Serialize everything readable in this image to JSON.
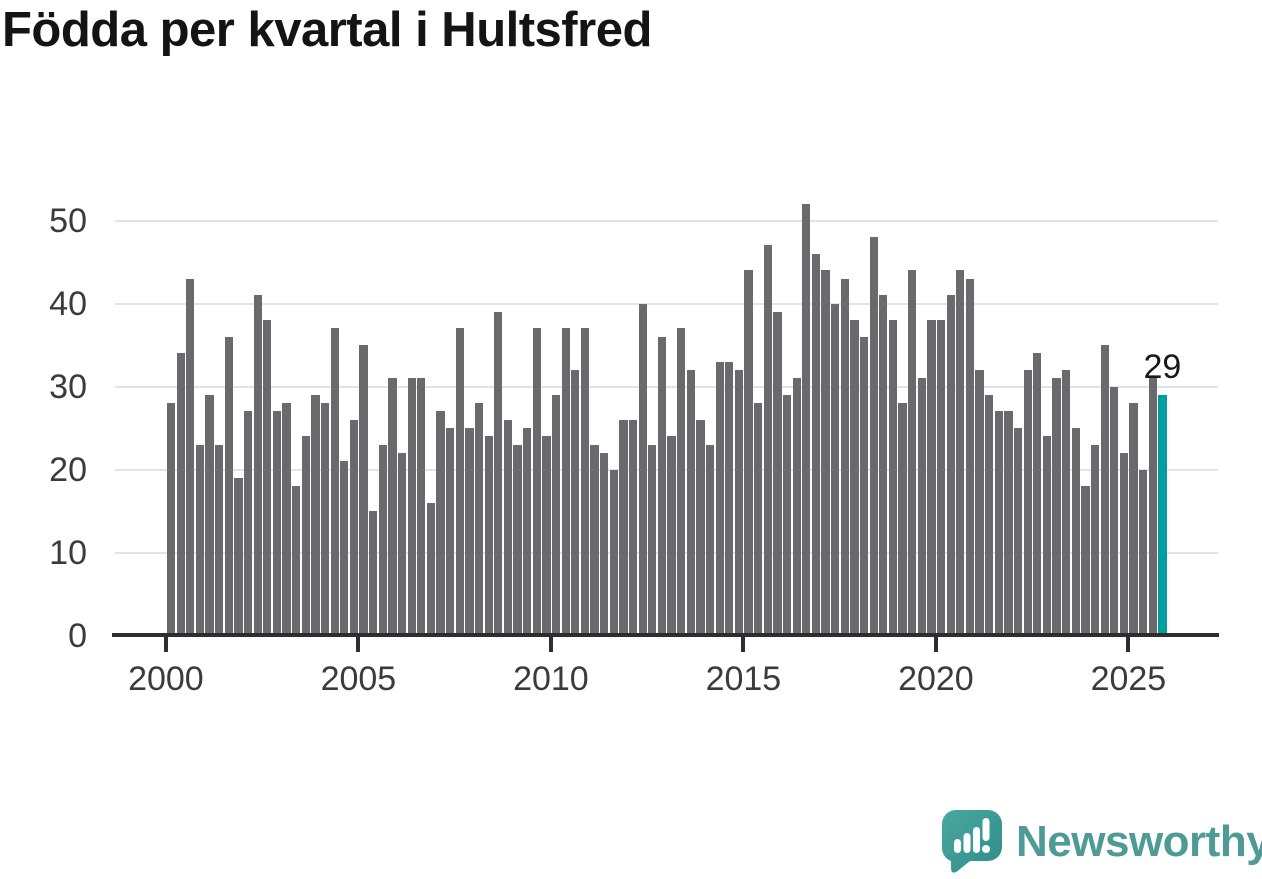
{
  "chart_data": {
    "type": "bar",
    "title": "Födda per kvartal i Hultsfred",
    "xlabel": "",
    "ylabel": "",
    "x_start": "2000 Q1",
    "x_end": "2025 Q4",
    "x_step": "quarter",
    "values": [
      28,
      34,
      43,
      23,
      29,
      23,
      36,
      19,
      27,
      41,
      38,
      27,
      28,
      18,
      24,
      29,
      28,
      37,
      21,
      26,
      35,
      15,
      23,
      31,
      22,
      31,
      31,
      16,
      27,
      25,
      37,
      25,
      28,
      24,
      39,
      26,
      23,
      25,
      37,
      24,
      29,
      37,
      32,
      37,
      23,
      22,
      20,
      26,
      26,
      40,
      23,
      36,
      24,
      37,
      32,
      26,
      23,
      33,
      33,
      32,
      44,
      28,
      47,
      39,
      29,
      31,
      52,
      46,
      44,
      40,
      43,
      38,
      36,
      48,
      41,
      38,
      28,
      44,
      31,
      38,
      38,
      41,
      44,
      43,
      32,
      29,
      27,
      27,
      25,
      32,
      34,
      24,
      31,
      32,
      25,
      18,
      23,
      35,
      30,
      22,
      28,
      20,
      31,
      29
    ],
    "x_tick_years": [
      2000,
      2005,
      2010,
      2015,
      2020,
      2025
    ],
    "x_tick_labels": [
      "2000",
      "2005",
      "2010",
      "2015",
      "2020",
      "2025"
    ],
    "y_ticks": [
      0,
      10,
      20,
      30,
      40,
      50
    ],
    "ylim": [
      0,
      53
    ],
    "grid": "horizontal",
    "legend": "none",
    "bar_color": "#69696e",
    "highlight": {
      "index": 103,
      "quarter": "2025 Q4",
      "value": 29,
      "label": "29",
      "color": "#009e9e"
    }
  },
  "branding": {
    "name": "Newsworthy",
    "icon": "newsworthy-speech-bubble-bar-chart-icon",
    "text_color": "#4e9b95",
    "icon_color": "#3fa099"
  }
}
